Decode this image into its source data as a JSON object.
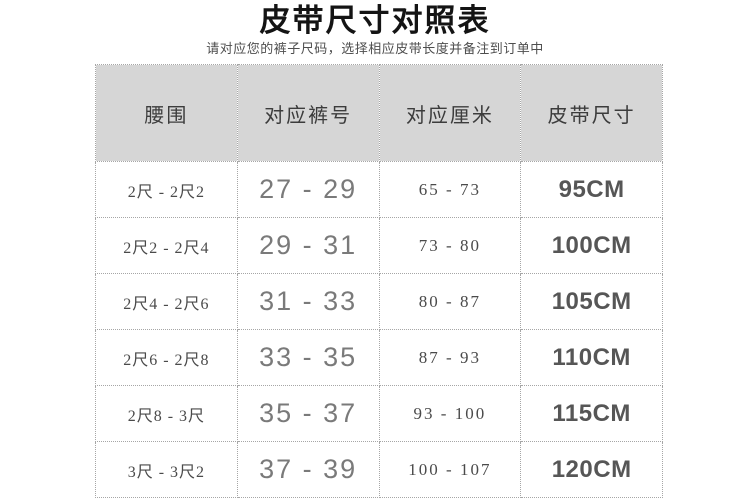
{
  "page": {
    "title": "皮带尺寸对照表",
    "subtitle": "请对应您的裤子尺码，选择相应皮带长度并备注到订单中"
  },
  "table": {
    "headers": [
      "腰围",
      "对应裤号",
      "对应厘米",
      "皮带尺寸"
    ],
    "rows": [
      {
        "waist": "2尺 - 2尺2",
        "pants": "27 - 29",
        "cm": "65 - 73",
        "belt": "95CM"
      },
      {
        "waist": "2尺2 - 2尺4",
        "pants": "29 - 31",
        "cm": "73 - 80",
        "belt": "100CM"
      },
      {
        "waist": "2尺4 - 2尺6",
        "pants": "31 - 33",
        "cm": "80 - 87",
        "belt": "105CM"
      },
      {
        "waist": "2尺6 - 2尺8",
        "pants": "33 - 35",
        "cm": "87 - 93",
        "belt": "110CM"
      },
      {
        "waist": "2尺8 - 3尺",
        "pants": "35 - 37",
        "cm": "93 - 100",
        "belt": "115CM"
      },
      {
        "waist": "3尺 - 3尺2",
        "pants": "37 - 39",
        "cm": "100 - 107",
        "belt": "120CM"
      }
    ]
  },
  "colors": {
    "header_bg": "#d6d6d6",
    "border": "#a6a6a6"
  }
}
